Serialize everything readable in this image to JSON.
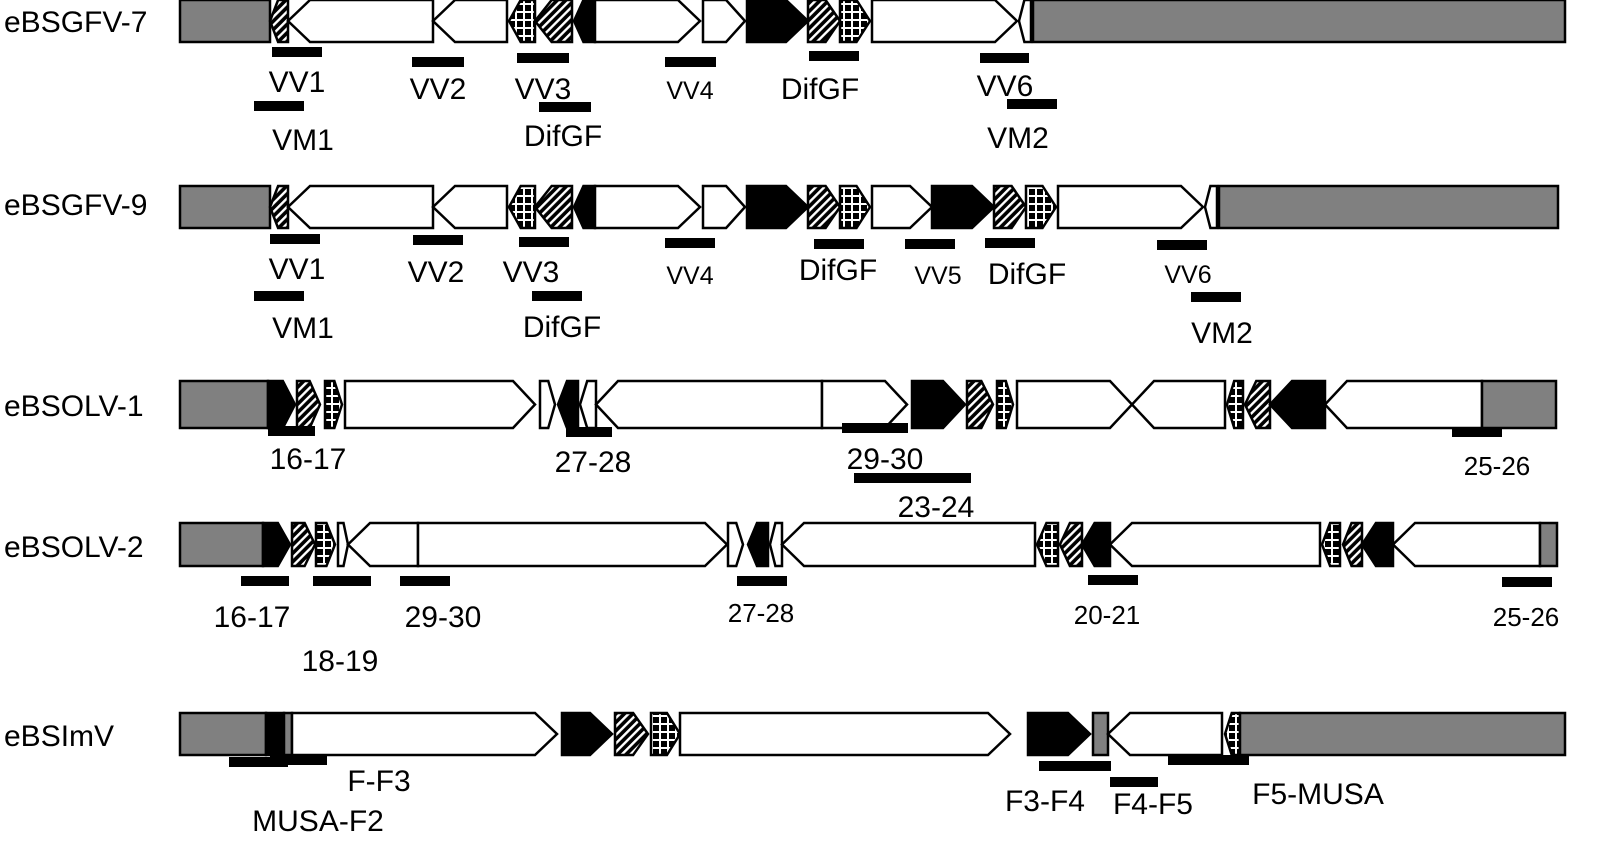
{
  "colors": {
    "flank": "#808080",
    "outline": "#000000",
    "solid": "#000000",
    "open": "#ffffff"
  },
  "rows": [
    {
      "label": "eBSGFV-7",
      "probes": [
        "VV1",
        "VV2",
        "VV3",
        "VV4",
        "DifGF",
        "VV6",
        "VM1",
        "DifGF",
        "VM2"
      ]
    },
    {
      "label": "eBSGFV-9",
      "probes": [
        "VV1",
        "VV2",
        "VV3",
        "VV4",
        "DifGF",
        "VV5",
        "DifGF",
        "VV6",
        "VM1",
        "DifGF",
        "VM2"
      ]
    },
    {
      "label": "eBSOLV-1",
      "probes": [
        "16-17",
        "27-28",
        "29-30",
        "23-24",
        "25-26"
      ]
    },
    {
      "label": "eBSOLV-2",
      "probes": [
        "16-17",
        "18-19",
        "29-30",
        "27-28",
        "20-21",
        "25-26"
      ]
    },
    {
      "label": "eBSImV",
      "probes": [
        "MUSA-F2",
        "F-F3",
        "F3-F4",
        "F4-F5",
        "F5-MUSA"
      ]
    }
  ]
}
